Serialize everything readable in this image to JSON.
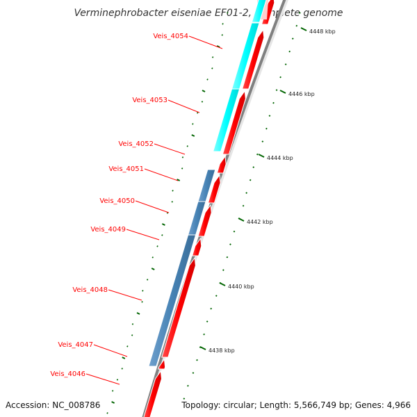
{
  "title": "Verminephrobacter eiseniae EF01-2, complete genome",
  "footer": {
    "accession": "Accession: NC_008786",
    "topology": "Topology: circular; Length: 5,566,749 bp; Genes: 4,966"
  },
  "gene_labels": [
    "Veis_4054",
    "Veis_4053",
    "Veis_4052",
    "Veis_4051",
    "Veis_4050",
    "Veis_4049",
    "Veis_4048",
    "Veis_4047",
    "Veis_4046"
  ],
  "kbp_labels": [
    "4448 kbp",
    "4446 kbp",
    "4444 kbp",
    "4442 kbp",
    "4440 kbp",
    "4438 kbp"
  ],
  "colors": {
    "cds": "#ff0000",
    "cog_cyan": "#00ffff",
    "cog_blue": "#4682b4",
    "label": "#ff0000",
    "tick": "#006400",
    "backbone": "#808080"
  }
}
